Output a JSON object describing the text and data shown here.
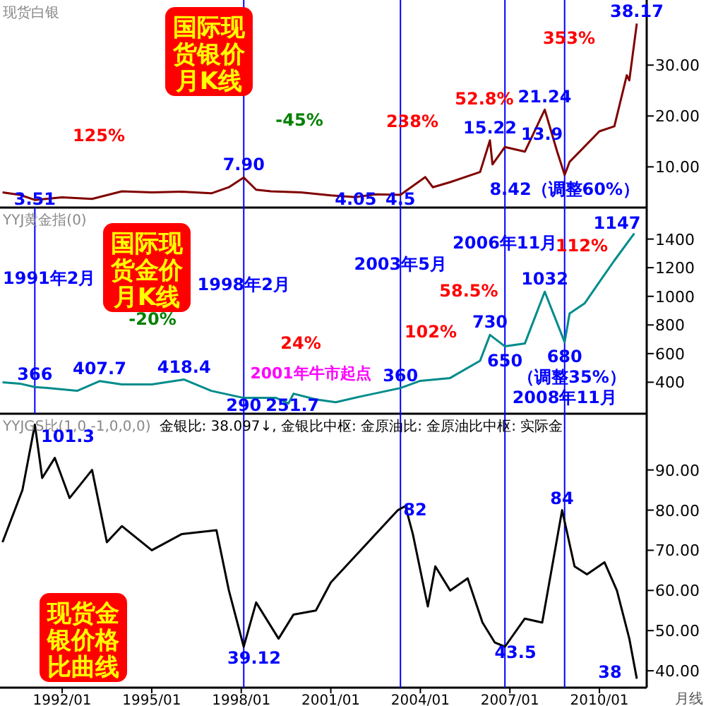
{
  "chart_data": [
    {
      "type": "line",
      "title": "现货白银",
      "subtitle": "国际现货银价月K线",
      "xlim": [
        "1989-12",
        "2011-08"
      ],
      "ylim": [
        2,
        42.8
      ],
      "yticks": [
        {
          "value": 10,
          "label": "10.00"
        },
        {
          "value": 20,
          "label": "20.00"
        },
        {
          "value": 30,
          "label": "30.00"
        }
      ],
      "tick_labels": "y",
      "series": [
        {
          "color": "#800000",
          "x": [
            "1990-01",
            "1990-08",
            "1991-02",
            "1992-01",
            "1993-01",
            "1994-01",
            "1995-01",
            "1996-01",
            "1997-01",
            "1997-08",
            "1998-02",
            "1998-07",
            "1999-01",
            "2000-01",
            "2001-01",
            "2001-11",
            "2002-07",
            "2003-05",
            "2004-03",
            "2004-06",
            "2005-01",
            "2006-01",
            "2006-05",
            "2006-06",
            "2006-11",
            "2007-07",
            "2008-03",
            "2008-08",
            "2008-11",
            "2009-01",
            "2009-07",
            "2010-01",
            "2010-07",
            "2010-12",
            "2011-01",
            "2011-04"
          ],
          "values": [
            5,
            4.5,
            3.51,
            4,
            3.7,
            5.2,
            5,
            5.1,
            4.8,
            6,
            7.9,
            5.5,
            5.2,
            5,
            4.4,
            4.05,
            4.6,
            4.5,
            8,
            6,
            7,
            9,
            15.22,
            10.5,
            13.9,
            13,
            21.24,
            13,
            8.42,
            11,
            14,
            17,
            18,
            28,
            27,
            38.17
          ]
        }
      ],
      "ref_lines": [
        {
          "axis": "x",
          "value": "1998-02",
          "color": "#0000ff"
        },
        {
          "axis": "x",
          "value": "2003-05",
          "color": "#0000ff"
        },
        {
          "axis": "x",
          "value": "2006-11",
          "color": "#0000ff"
        },
        {
          "axis": "x",
          "value": "2008-11",
          "color": "#0000ff"
        }
      ],
      "annotations": [
        "125%",
        "-45%",
        "238%",
        "52.8%",
        "353%",
        {
          "text": "3.51",
          "x": "1991-02",
          "y": 3.51
        },
        {
          "text": "7.90",
          "x": "1998-02",
          "y": 7.9
        },
        {
          "text": "4.05",
          "x": "2001-11",
          "y": 4.05
        },
        {
          "text": "4.5",
          "x": "2003-05",
          "y": 4.5
        },
        {
          "text": "15.22",
          "x": "2006-05",
          "y": 15.22
        },
        {
          "text": "13.9",
          "x": "2006-11",
          "y": 13.9
        },
        {
          "text": "21.24",
          "x": "2008-03",
          "y": 21.24
        },
        {
          "text": "38.17",
          "x": "2011-04",
          "y": 38.17
        },
        {
          "text": "8.42（调整60%）",
          "x": "2008-11",
          "y": 8.42
        }
      ]
    },
    {
      "type": "line",
      "title": "YYJ黄金指(0)",
      "subtitle": "国际现货金价月K线",
      "xlim": [
        "1989-12",
        "2011-08"
      ],
      "ylim": [
        180,
        1620
      ],
      "yticks": [
        400,
        600,
        800,
        1000,
        1200,
        1400
      ],
      "tick_labels": "y",
      "series": [
        {
          "color": "#008b8b",
          "x": [
            "1990-01",
            "1990-08",
            "1991-02",
            "1991-07",
            "1992-07",
            "1993-04",
            "1994-01",
            "1995-01",
            "1996-02",
            "1997-01",
            "1998-02",
            "1999-03",
            "1999-08",
            "1999-10",
            "2000-07",
            "2001-03",
            "2002-01",
            "2003-05",
            "2004-01",
            "2005-01",
            "2006-01",
            "2006-05",
            "2006-11",
            "2007-07",
            "2008-03",
            "2008-11",
            "2009-01",
            "2009-07",
            "2010-01",
            "2010-07",
            "2011-03"
          ],
          "values": [
            400,
            390,
            366,
            360,
            340,
            407.7,
            385,
            385,
            418.4,
            340,
            290,
            290,
            251.7,
            320,
            280,
            260,
            300,
            360,
            410,
            430,
            550,
            730,
            650,
            670,
            1032,
            680,
            880,
            950,
            1100,
            1250,
            1440
          ]
        }
      ],
      "ref_lines": [
        {
          "axis": "x",
          "value": "1991-02",
          "label": "1991年2月",
          "color": "#0000ff"
        },
        {
          "axis": "x",
          "value": "1998-02",
          "label": "1998年2月",
          "color": "#0000ff"
        },
        {
          "axis": "x",
          "value": "2003-05",
          "label": "2003年5月",
          "color": "#0000ff"
        },
        {
          "axis": "x",
          "value": "2006-11",
          "label": "2006年11月",
          "color": "#0000ff"
        },
        {
          "axis": "x",
          "value": "2008-11",
          "label": "2008年11月",
          "color": "#0000ff"
        }
      ],
      "annotations": [
        "-20%",
        "24%",
        "2001年牛市起点",
        "102%",
        "58.5%",
        "112%",
        "1147",
        "（调整35%）",
        {
          "text": "366",
          "x": "1991-02",
          "y": 366
        },
        {
          "text": "407.7",
          "x": "1993-04",
          "y": 407.7
        },
        {
          "text": "418.4",
          "x": "1996-02",
          "y": 418.4
        },
        {
          "text": "290",
          "x": "1998-02",
          "y": 290
        },
        {
          "text": "251.7",
          "x": "1999-08",
          "y": 251.7
        },
        {
          "text": "360",
          "x": "2003-05",
          "y": 360
        },
        {
          "text": "730",
          "x": "2006-05",
          "y": 730
        },
        {
          "text": "650",
          "x": "2006-11",
          "y": 650
        },
        {
          "text": "1032",
          "x": "2008-03",
          "y": 1032
        },
        {
          "text": "680",
          "x": "2008-11",
          "y": 680
        }
      ]
    },
    {
      "type": "line",
      "title": "YYJGS比(1,0,-1,0,0,0)",
      "subtitle": "现货金银价格比曲线",
      "xlabel": "月线",
      "xlim": [
        "1989-12",
        "2011-08"
      ],
      "ylim": [
        35.8,
        104
      ],
      "yticks": [
        {
          "value": 40,
          "label": "40.00"
        },
        {
          "value": 50,
          "label": "50.00"
        },
        {
          "value": 60,
          "label": "60.00"
        },
        {
          "value": 70,
          "label": "70.00"
        },
        {
          "value": 80,
          "label": "80.00"
        },
        {
          "value": 90,
          "label": "90.00"
        }
      ],
      "xticks": [
        {
          "value": "1992-01",
          "label": "1992/01"
        },
        {
          "value": "1995-01",
          "label": "1995/01"
        },
        {
          "value": "1998-01",
          "label": "1998/01"
        },
        {
          "value": "2001-01",
          "label": "2001/01"
        },
        {
          "value": "2004-01",
          "label": "2004/01"
        },
        {
          "value": "2007-01",
          "label": "2007/01"
        },
        {
          "value": "2010-01",
          "label": "2010/01"
        }
      ],
      "series": [
        {
          "color": "#000000",
          "x": [
            "1990-01",
            "1990-09",
            "1991-02",
            "1991-05",
            "1991-10",
            "1992-04",
            "1993-01",
            "1993-07",
            "1994-01",
            "1995-01",
            "1996-01",
            "1997-03",
            "1997-08",
            "1998-02",
            "1998-07",
            "1999-04",
            "1999-10",
            "2000-07",
            "2001-01",
            "2002-01",
            "2003-04",
            "2003-07",
            "2003-10",
            "2004-04",
            "2004-07",
            "2005-01",
            "2005-08",
            "2006-02",
            "2006-07",
            "2006-11",
            "2007-07",
            "2008-02",
            "2008-10",
            "2009-03",
            "2009-08",
            "2010-03",
            "2010-08",
            "2011-01",
            "2011-04"
          ],
          "values": [
            72,
            85,
            101.3,
            88,
            93,
            83,
            90,
            72,
            76,
            70,
            74,
            75,
            60,
            46,
            57,
            48,
            54,
            55,
            62,
            70,
            80,
            81,
            74,
            56,
            66,
            60,
            63,
            52,
            47,
            46,
            53,
            52,
            80,
            66,
            64,
            67,
            60,
            48,
            38
          ]
        }
      ],
      "ref_lines": [
        {
          "axis": "x",
          "value": "1998-02",
          "color": "#0000ff"
        },
        {
          "axis": "x",
          "value": "2003-05",
          "color": "#0000ff"
        },
        {
          "axis": "x",
          "value": "2006-11",
          "color": "#0000ff"
        },
        {
          "axis": "x",
          "value": "2008-11",
          "color": "#0000ff"
        }
      ],
      "annotations": [
        "金银比: 38.097↓, 金银比中枢: 金原油比: 金原油比中枢: 实际金",
        "101.3",
        "82",
        "84",
        "39.12",
        "43.5",
        "38"
      ]
    }
  ]
}
